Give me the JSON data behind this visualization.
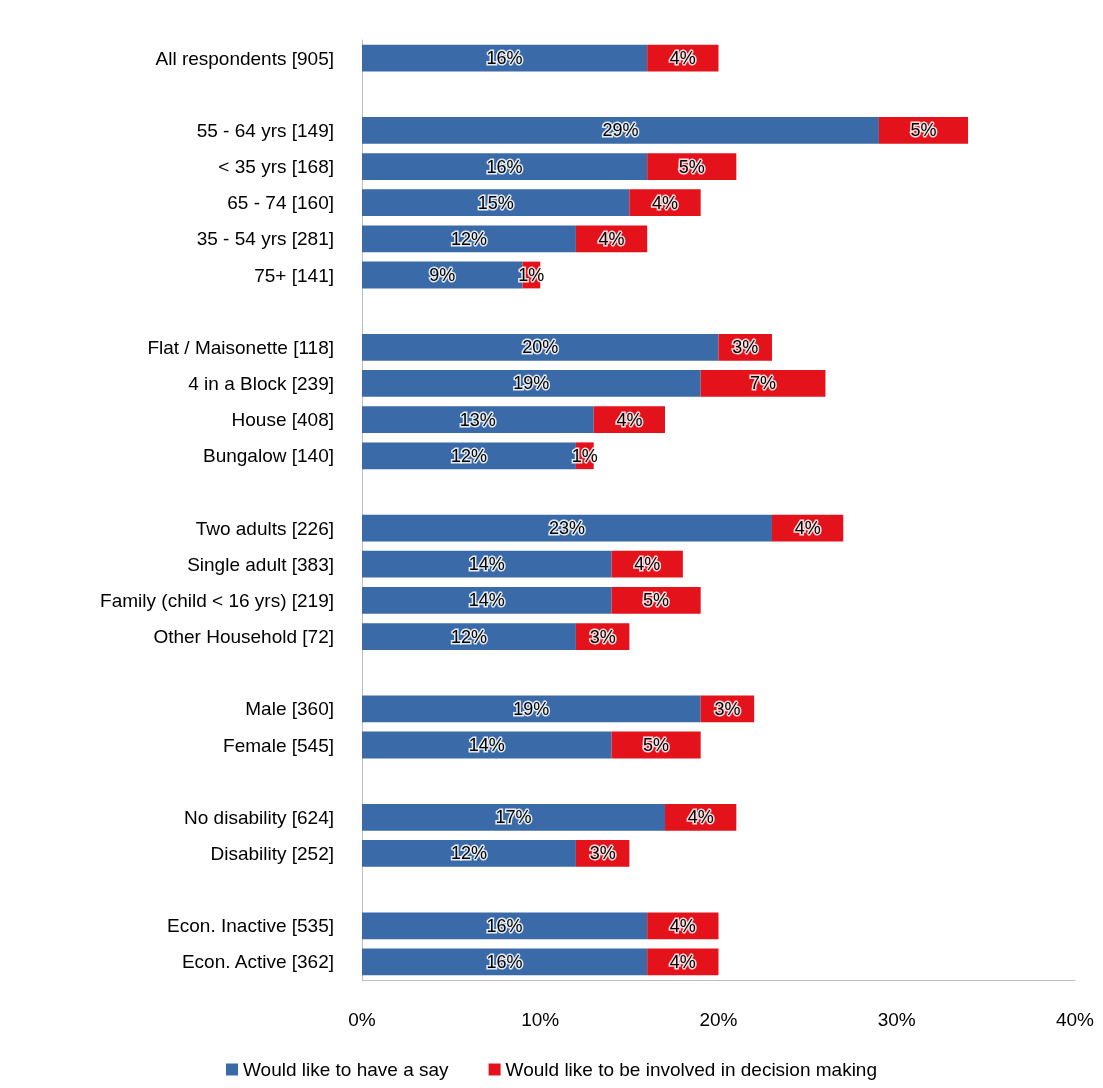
{
  "chart_data": {
    "type": "bar",
    "orientation": "horizontal",
    "stacked": true,
    "categories": [
      "All respondents [905]",
      null,
      "55 - 64 yrs [149]",
      "< 35 yrs [168]",
      "65 - 74 [160]",
      "35 - 54 yrs [281]",
      "75+ [141]",
      null,
      "Flat / Maisonette [118]",
      "4 in a Block [239]",
      "House [408]",
      "Bungalow [140]",
      null,
      "Two adults [226]",
      "Single adult [383]",
      "Family (child < 16 yrs) [219]",
      "Other Household [72]",
      null,
      "Male [360]",
      "Female [545]",
      null,
      "No disability [624]",
      "Disability [252]",
      null,
      "Econ. Inactive [535]",
      "Econ. Active [362]"
    ],
    "series": [
      {
        "name": "Would like to have a say",
        "color": "#3b6aa8",
        "values": [
          16,
          null,
          29,
          16,
          15,
          12,
          9,
          null,
          20,
          19,
          13,
          12,
          null,
          23,
          14,
          14,
          12,
          null,
          19,
          14,
          null,
          17,
          12,
          null,
          16,
          16
        ],
        "value_labels": [
          "16%",
          null,
          "29%",
          "16%",
          "15%",
          "12%",
          "9%",
          null,
          "20%",
          "19%",
          "13%",
          "12%",
          null,
          "23%",
          "14%",
          "14%",
          "12%",
          null,
          "19%",
          "14%",
          null,
          "17%",
          "12%",
          null,
          "16%",
          "16%"
        ]
      },
      {
        "name": "Would like to be involved in decision making",
        "color": "#e3121b",
        "values": [
          4,
          null,
          5,
          5,
          4,
          4,
          1,
          null,
          3,
          7,
          4,
          1,
          null,
          4,
          4,
          5,
          3,
          null,
          3,
          5,
          null,
          4,
          3,
          null,
          4,
          4
        ],
        "value_labels": [
          "4%",
          null,
          "5%",
          "5%",
          "4%",
          "4%",
          "1%",
          null,
          "3%",
          "7%",
          "4%",
          "1%",
          null,
          "4%",
          "4%",
          "5%",
          "3%",
          null,
          "3%",
          "5%",
          null,
          "4%",
          "3%",
          null,
          "4%",
          "4%"
        ]
      }
    ],
    "xlim": [
      0,
      40
    ],
    "xticks": [
      {
        "value": 0,
        "label": "0%"
      },
      {
        "value": 10,
        "label": "10%"
      },
      {
        "value": 20,
        "label": "20%"
      },
      {
        "value": 30,
        "label": "30%"
      },
      {
        "value": 40,
        "label": "40%"
      }
    ],
    "grid": false,
    "legend": "bottom"
  }
}
